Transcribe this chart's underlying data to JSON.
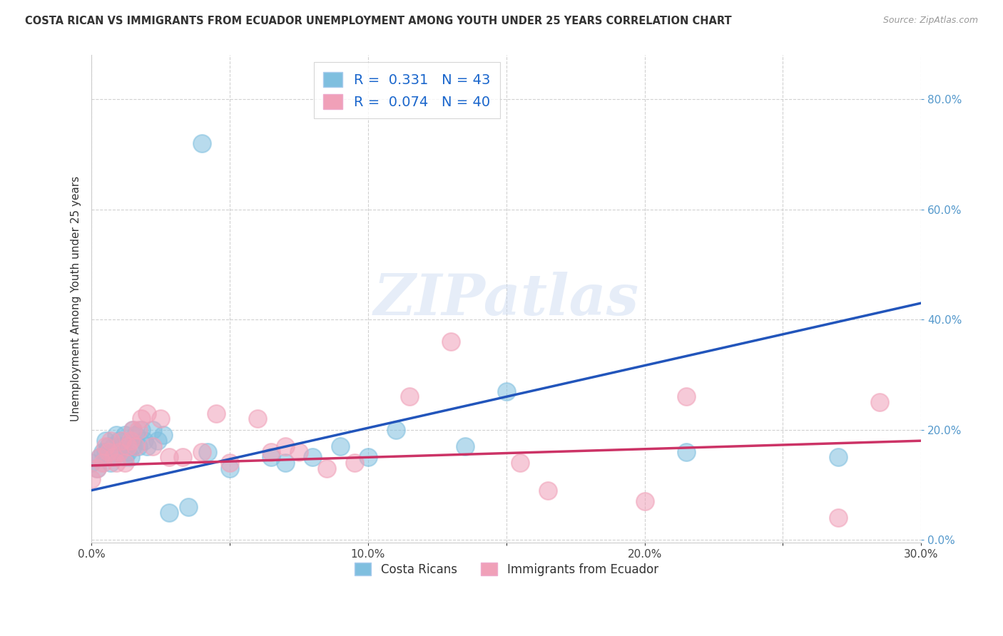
{
  "title": "COSTA RICAN VS IMMIGRANTS FROM ECUADOR UNEMPLOYMENT AMONG YOUTH UNDER 25 YEARS CORRELATION CHART",
  "source": "Source: ZipAtlas.com",
  "ylabel": "Unemployment Among Youth under 25 years",
  "xlim": [
    0.0,
    0.3
  ],
  "ylim": [
    -0.005,
    0.88
  ],
  "blue_color": "#7fbfdf",
  "blue_edge_color": "#7fbfdf",
  "blue_line_color": "#2255bb",
  "pink_color": "#f0a0b8",
  "pink_edge_color": "#f0a0b8",
  "pink_line_color": "#cc3366",
  "R_blue": 0.331,
  "N_blue": 43,
  "R_pink": 0.074,
  "N_pink": 40,
  "legend_labels": [
    "Costa Ricans",
    "Immigrants from Ecuador"
  ],
  "blue_x": [
    0.0,
    0.002,
    0.003,
    0.004,
    0.005,
    0.005,
    0.006,
    0.007,
    0.008,
    0.008,
    0.009,
    0.01,
    0.01,
    0.011,
    0.012,
    0.012,
    0.013,
    0.014,
    0.015,
    0.015,
    0.016,
    0.017,
    0.018,
    0.019,
    0.02,
    0.022,
    0.024,
    0.026,
    0.028,
    0.035,
    0.04,
    0.042,
    0.05,
    0.065,
    0.07,
    0.08,
    0.09,
    0.1,
    0.11,
    0.135,
    0.15,
    0.215,
    0.27
  ],
  "blue_y": [
    0.14,
    0.13,
    0.15,
    0.16,
    0.16,
    0.18,
    0.17,
    0.14,
    0.15,
    0.17,
    0.19,
    0.16,
    0.18,
    0.17,
    0.15,
    0.19,
    0.16,
    0.15,
    0.17,
    0.2,
    0.19,
    0.17,
    0.2,
    0.18,
    0.17,
    0.2,
    0.18,
    0.19,
    0.05,
    0.06,
    0.72,
    0.16,
    0.13,
    0.15,
    0.14,
    0.15,
    0.17,
    0.15,
    0.2,
    0.17,
    0.27,
    0.16,
    0.15
  ],
  "pink_x": [
    0.0,
    0.002,
    0.003,
    0.004,
    0.005,
    0.006,
    0.007,
    0.008,
    0.009,
    0.01,
    0.011,
    0.012,
    0.013,
    0.014,
    0.015,
    0.016,
    0.017,
    0.018,
    0.02,
    0.022,
    0.025,
    0.028,
    0.033,
    0.04,
    0.045,
    0.05,
    0.06,
    0.065,
    0.07,
    0.075,
    0.085,
    0.095,
    0.115,
    0.13,
    0.155,
    0.165,
    0.2,
    0.215,
    0.27,
    0.285
  ],
  "pink_y": [
    0.11,
    0.13,
    0.15,
    0.14,
    0.17,
    0.16,
    0.18,
    0.15,
    0.14,
    0.16,
    0.18,
    0.14,
    0.17,
    0.18,
    0.2,
    0.17,
    0.2,
    0.22,
    0.23,
    0.17,
    0.22,
    0.15,
    0.15,
    0.16,
    0.23,
    0.14,
    0.22,
    0.16,
    0.17,
    0.16,
    0.13,
    0.14,
    0.26,
    0.36,
    0.14,
    0.09,
    0.07,
    0.26,
    0.04,
    0.25
  ],
  "blue_line_x0": 0.0,
  "blue_line_y0": 0.09,
  "blue_line_x1": 0.3,
  "blue_line_y1": 0.43,
  "pink_line_x0": 0.0,
  "pink_line_y0": 0.135,
  "pink_line_x1": 0.3,
  "pink_line_y1": 0.18,
  "watermark": "ZIPatlas",
  "background_color": "#ffffff",
  "grid_color": "#cccccc",
  "ytick_color": "#5599cc",
  "xtick_vals": [
    0.0,
    0.1,
    0.2,
    0.3
  ],
  "ytick_vals": [
    0.0,
    0.2,
    0.4,
    0.6,
    0.8
  ],
  "minor_xtick_vals": [
    0.05,
    0.15,
    0.25
  ],
  "minor_ytick_vals": []
}
